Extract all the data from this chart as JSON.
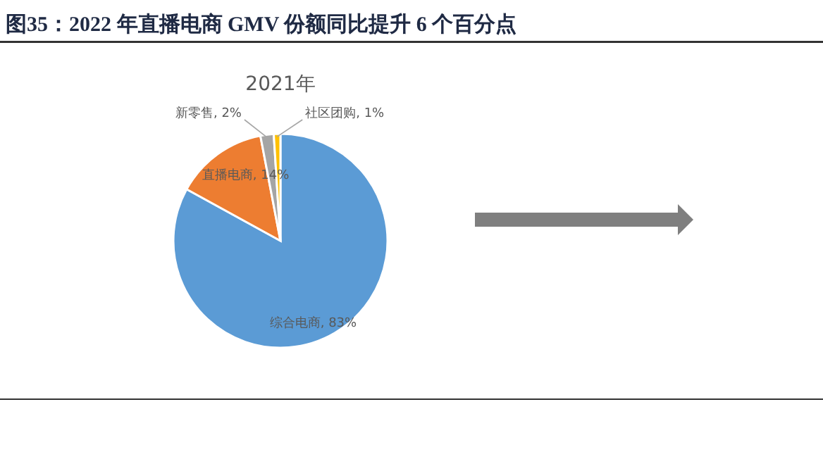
{
  "chart_data": {
    "type": "pie",
    "title": "图35：2022 年直播电商 GMV 份额同比提升 6 个百分点",
    "subtitle": "2021年",
    "categories": [
      "综合电商",
      "直播电商",
      "新零售",
      "社区团购"
    ],
    "values": [
      83,
      14,
      2,
      1
    ],
    "colors": [
      "#5b9bd5",
      "#ed7d31",
      "#a5a5a5",
      "#ffc000"
    ],
    "value_labels": [
      "83%",
      "14%",
      "2%",
      "1%"
    ],
    "legend": false
  }
}
